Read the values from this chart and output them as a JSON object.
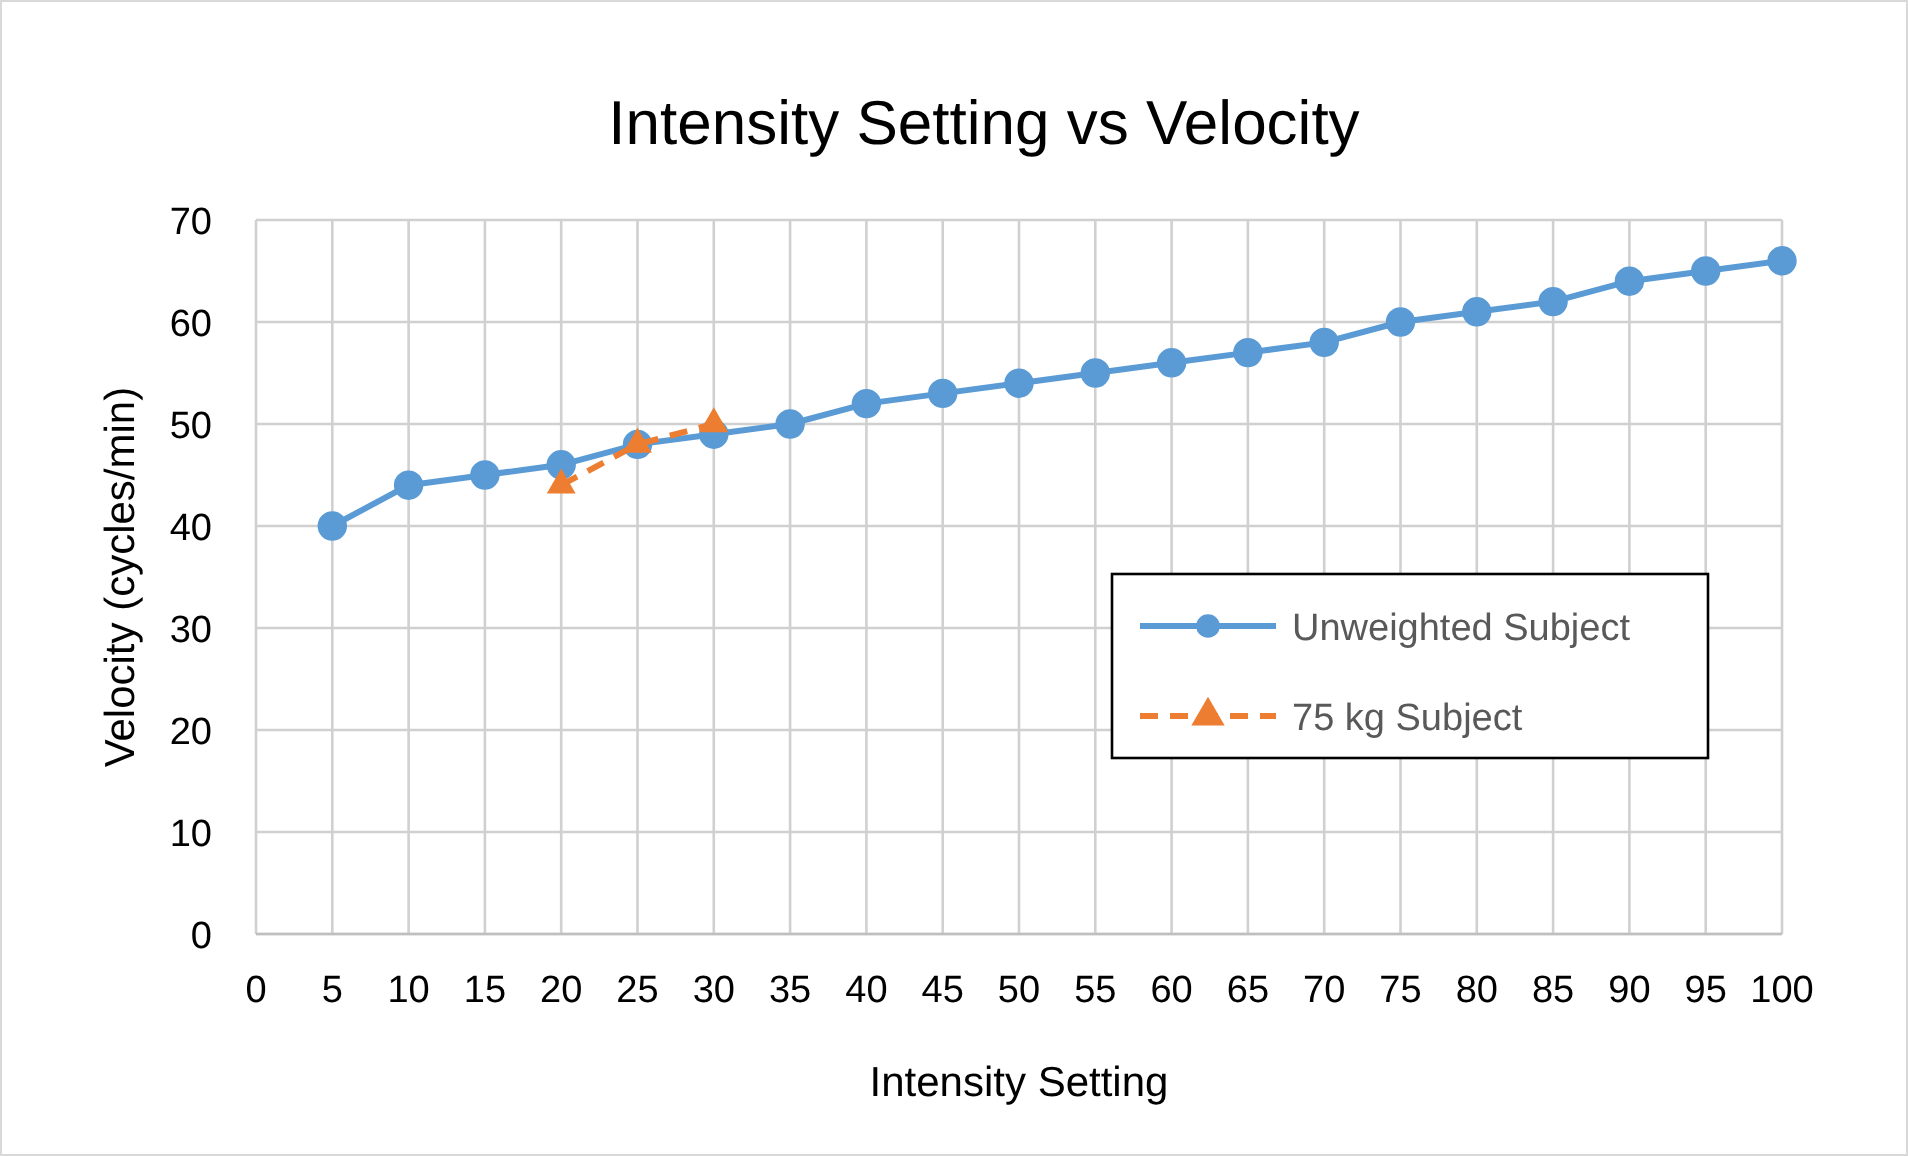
{
  "chart_data": {
    "type": "line",
    "title": "Intensity Setting vs Velocity",
    "xlabel": "Intensity Setting",
    "ylabel": "Velocity (cycles/min)",
    "x": [
      5,
      10,
      15,
      20,
      25,
      30,
      35,
      40,
      45,
      50,
      55,
      60,
      65,
      70,
      75,
      80,
      85,
      90,
      95,
      100
    ],
    "series": [
      {
        "name": "Unweighted Subject",
        "color": "#5b9bd5",
        "marker": "circle",
        "line_style": "solid",
        "values": [
          40,
          44,
          45,
          46,
          48,
          49,
          50,
          52,
          53,
          54,
          55,
          56,
          57,
          58,
          60,
          61,
          62,
          64,
          65,
          66
        ]
      },
      {
        "name": "75 kg Subject",
        "color": "#ed7d31",
        "marker": "triangle",
        "line_style": "dashed",
        "x": [
          20,
          25,
          30
        ],
        "values": [
          44,
          48,
          50
        ]
      }
    ],
    "xlim": [
      0,
      100
    ],
    "xticks": [
      0,
      5,
      10,
      15,
      20,
      25,
      30,
      35,
      40,
      45,
      50,
      55,
      60,
      65,
      70,
      75,
      80,
      85,
      90,
      95,
      100
    ],
    "ylim": [
      0,
      70
    ],
    "yticks": [
      0,
      10,
      20,
      30,
      40,
      50,
      60,
      70
    ],
    "grid": true,
    "legend": "right"
  }
}
